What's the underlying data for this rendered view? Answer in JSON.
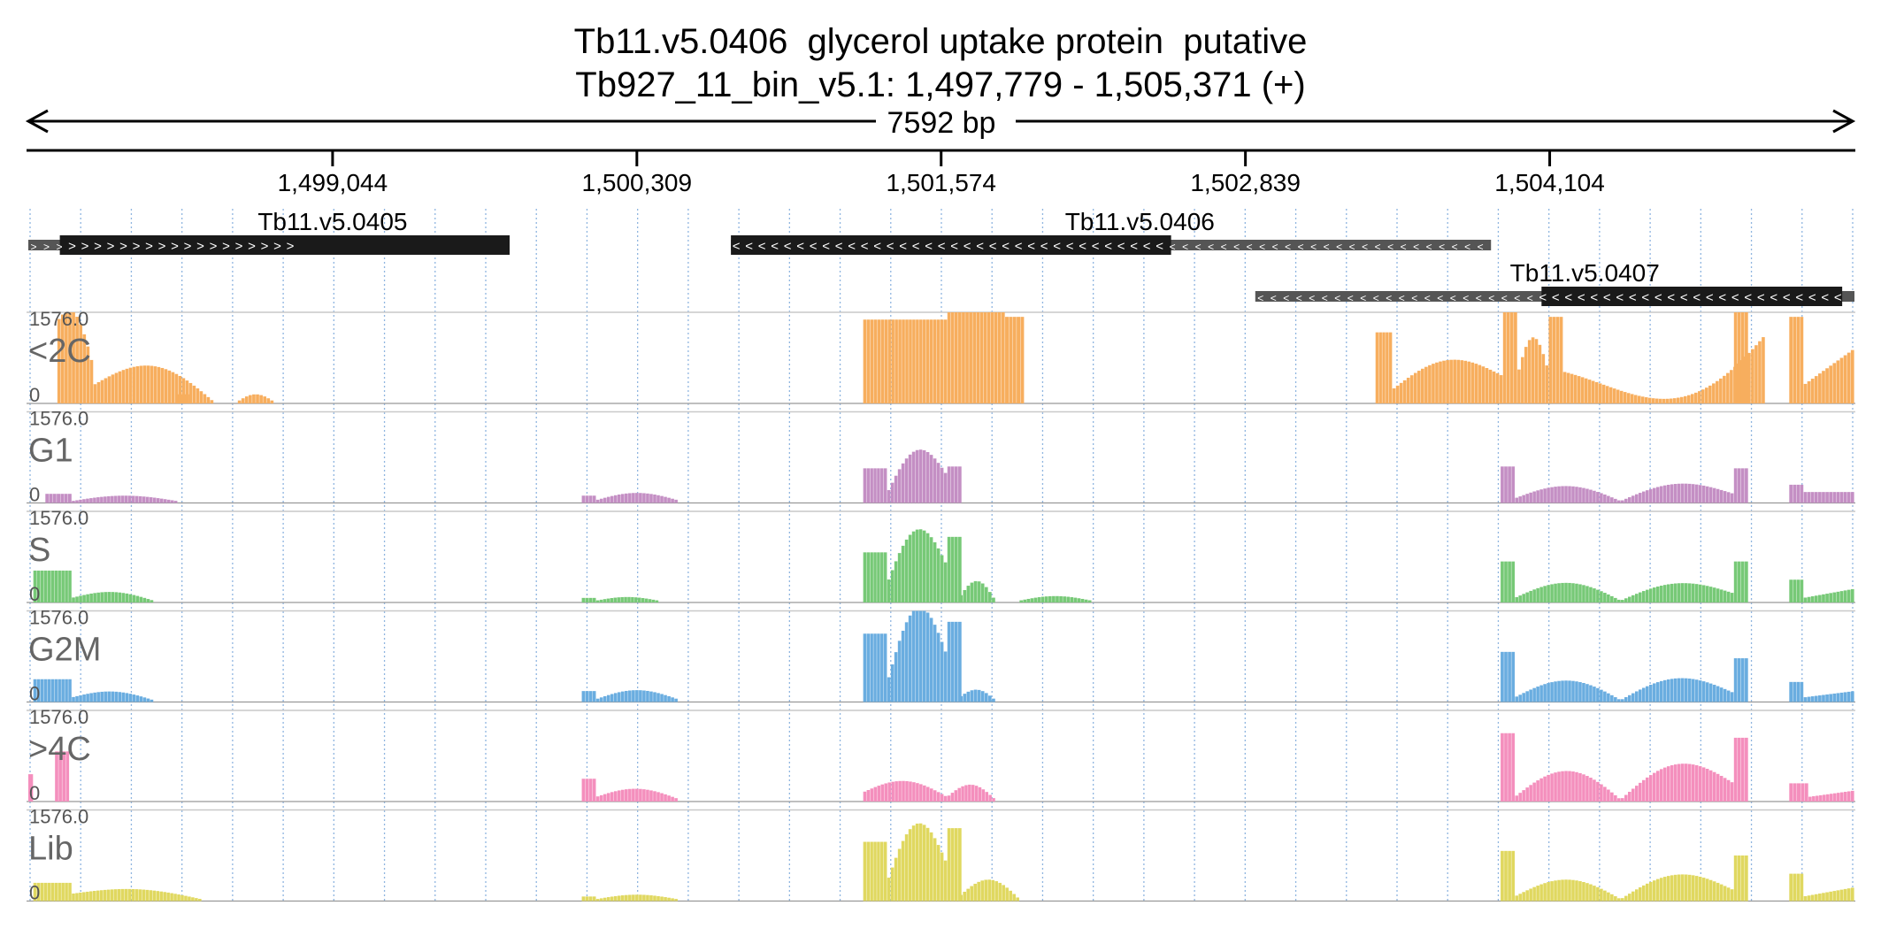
{
  "header": {
    "title": "Tb11.v5.0406  glycerol uptake protein  putative",
    "subtitle": "Tb927_11_bin_v5.1: 1,497,779 - 1,505,371 (+)",
    "span_label": "7592 bp"
  },
  "colors": {
    "<2C": "#f7ae5e",
    "G1": "#c48fc4",
    "S": "#77c977",
    "G2M": "#6aade0",
    "4C": "#f48fbd",
    "Lib": "#e0d860",
    "gene_core": "#1a1a1a",
    "gene_utr": "#555555",
    "grid": "#8fb5e0",
    "label": "#666666"
  },
  "chart_data": {
    "type": "genome_browser",
    "region": {
      "chrom": "Tb927_11_bin_v5.1",
      "start": 1497779,
      "end": 1505371,
      "strand": "+"
    },
    "ticks": [
      {
        "pos": 1499044,
        "label": "1,499,044"
      },
      {
        "pos": 1500309,
        "label": "1,500,309"
      },
      {
        "pos": 1501574,
        "label": "1,501,574"
      },
      {
        "pos": 1502839,
        "label": "1,502,839"
      },
      {
        "pos": 1504104,
        "label": "1,504,104"
      }
    ],
    "genes": [
      {
        "name": "Tb11.v5.0405",
        "strand": "+",
        "row": 0,
        "utr": [
          1497779,
          1498900
        ],
        "core": [
          1497910,
          1499780
        ],
        "label_pos": 1499044
      },
      {
        "name": "Tb11.v5.0406",
        "strand": "-",
        "row": 0,
        "utr": [
          1500700,
          1503860
        ],
        "core": [
          1500700,
          1502530
        ],
        "label_pos": 1502400
      },
      {
        "name": "Tb11.v5.0407",
        "strand": "-",
        "row": 1,
        "utr": [
          1502880,
          1505371
        ],
        "core": [
          1504070,
          1505320
        ],
        "label_pos": 1504250
      }
    ],
    "tracks": [
      {
        "name": "<2C",
        "max_label": "1576.0",
        "min_label": "0",
        "color_key": "<2C",
        "scale": 1.0,
        "blocks": [
          {
            "start": 1497900,
            "end": 1498050,
            "shape": "hump",
            "h0": 0.9,
            "h1": 0.4,
            "peak": 0.33
          },
          {
            "start": 1498050,
            "end": 1498550,
            "shape": "hump",
            "h0": 0.2,
            "h1": 0.02,
            "peak": 0.3
          },
          {
            "start": 1498400,
            "end": 1498460,
            "shape": "flat",
            "h0": 0.1,
            "h1": 0.1,
            "peak": 0
          },
          {
            "start": 1498650,
            "end": 1498800,
            "shape": "hump",
            "h0": 0.02,
            "h1": 0.02,
            "peak": 0.08
          },
          {
            "start": 1501600,
            "end": 1501840,
            "shape": "hump",
            "h0": 0.92,
            "h1": 0.95,
            "peak": 0.8
          },
          {
            "start": 1501840,
            "end": 1501920,
            "shape": "flat",
            "h0": 0.95,
            "h1": 0.95,
            "peak": 0
          },
          {
            "start": 1501250,
            "end": 1501600,
            "shape": "flat",
            "h0": 0.92,
            "h1": 0.92,
            "peak": 0
          },
          {
            "start": 1503380,
            "end": 1503450,
            "shape": "flat",
            "h0": 0.78,
            "h1": 0.78,
            "peak": 0
          },
          {
            "start": 1503450,
            "end": 1503910,
            "shape": "hump",
            "h0": 0.15,
            "h1": 0.3,
            "peak": 0.25
          },
          {
            "start": 1503910,
            "end": 1503970,
            "shape": "flat",
            "h0": 1.0,
            "h1": 1.0,
            "peak": 0
          },
          {
            "start": 1503970,
            "end": 1504100,
            "shape": "hump",
            "h0": 0.3,
            "h1": 0.35,
            "peak": 0.4
          },
          {
            "start": 1504100,
            "end": 1504160,
            "shape": "flat",
            "h0": 0.95,
            "h1": 0.95,
            "peak": 0
          },
          {
            "start": 1504160,
            "end": 1505000,
            "shape": "dip",
            "h0": 0.35,
            "h1": 0.75,
            "peak": 0.05
          },
          {
            "start": 1504870,
            "end": 1504930,
            "shape": "flat",
            "h0": 1.0,
            "h1": 1.0,
            "peak": 0
          },
          {
            "start": 1505100,
            "end": 1505160,
            "shape": "flat",
            "h0": 0.95,
            "h1": 0.95,
            "peak": 0
          },
          {
            "start": 1505160,
            "end": 1505371,
            "shape": "ramp",
            "h0": 0.2,
            "h1": 0.6,
            "peak": 0
          }
        ]
      },
      {
        "name": "G1",
        "max_label": "1576.0",
        "min_label": "0",
        "color_key": "G1",
        "scale": 1.0,
        "blocks": [
          {
            "start": 1497850,
            "end": 1497960,
            "shape": "flat",
            "h0": 0.1,
            "h1": 0.1,
            "peak": 0
          },
          {
            "start": 1497960,
            "end": 1498400,
            "shape": "hump",
            "h0": 0.02,
            "h1": 0.02,
            "peak": 0.06
          },
          {
            "start": 1500080,
            "end": 1500140,
            "shape": "flat",
            "h0": 0.08,
            "h1": 0.08,
            "peak": 0
          },
          {
            "start": 1500140,
            "end": 1500480,
            "shape": "hump",
            "h0": 0.03,
            "h1": 0.03,
            "peak": 0.08
          },
          {
            "start": 1501250,
            "end": 1501350,
            "shape": "flat",
            "h0": 0.38,
            "h1": 0.38,
            "peak": 0
          },
          {
            "start": 1501350,
            "end": 1501600,
            "shape": "hump",
            "h0": 0.1,
            "h1": 0.3,
            "peak": 0.38
          },
          {
            "start": 1501600,
            "end": 1501660,
            "shape": "flat",
            "h0": 0.4,
            "h1": 0.4,
            "peak": 0
          },
          {
            "start": 1503900,
            "end": 1503960,
            "shape": "flat",
            "h0": 0.4,
            "h1": 0.4,
            "peak": 0
          },
          {
            "start": 1503960,
            "end": 1504400,
            "shape": "hump",
            "h0": 0.05,
            "h1": 0.02,
            "peak": 0.15
          },
          {
            "start": 1504400,
            "end": 1504870,
            "shape": "hump",
            "h0": 0.02,
            "h1": 0.1,
            "peak": 0.15
          },
          {
            "start": 1504870,
            "end": 1504930,
            "shape": "flat",
            "h0": 0.38,
            "h1": 0.38,
            "peak": 0
          },
          {
            "start": 1505100,
            "end": 1505160,
            "shape": "flat",
            "h0": 0.2,
            "h1": 0.2,
            "peak": 0
          },
          {
            "start": 1505160,
            "end": 1505371,
            "shape": "flat",
            "h0": 0.12,
            "h1": 0.12,
            "peak": 0
          }
        ]
      },
      {
        "name": "S",
        "max_label": "1576.0",
        "min_label": "0",
        "color_key": "S",
        "scale": 1.0,
        "blocks": [
          {
            "start": 1497800,
            "end": 1497960,
            "shape": "flat",
            "h0": 0.35,
            "h1": 0.35,
            "peak": 0
          },
          {
            "start": 1497960,
            "end": 1498300,
            "shape": "hump",
            "h0": 0.05,
            "h1": 0.02,
            "peak": 0.08
          },
          {
            "start": 1500080,
            "end": 1500140,
            "shape": "flat",
            "h0": 0.05,
            "h1": 0.05,
            "peak": 0
          },
          {
            "start": 1500140,
            "end": 1500400,
            "shape": "hump",
            "h0": 0.02,
            "h1": 0.02,
            "peak": 0.04
          },
          {
            "start": 1501250,
            "end": 1501350,
            "shape": "flat",
            "h0": 0.55,
            "h1": 0.55,
            "peak": 0
          },
          {
            "start": 1501350,
            "end": 1501600,
            "shape": "hump",
            "h0": 0.2,
            "h1": 0.4,
            "peak": 0.5
          },
          {
            "start": 1501600,
            "end": 1501660,
            "shape": "flat",
            "h0": 0.72,
            "h1": 0.72,
            "peak": 0
          },
          {
            "start": 1501650,
            "end": 1501800,
            "shape": "hump",
            "h0": 0.05,
            "h1": 0.02,
            "peak": 0.2
          },
          {
            "start": 1501900,
            "end": 1502200,
            "shape": "hump",
            "h0": 0.02,
            "h1": 0.02,
            "peak": 0.05
          },
          {
            "start": 1503900,
            "end": 1503960,
            "shape": "flat",
            "h0": 0.45,
            "h1": 0.45,
            "peak": 0
          },
          {
            "start": 1503960,
            "end": 1504400,
            "shape": "hump",
            "h0": 0.05,
            "h1": 0.02,
            "peak": 0.18
          },
          {
            "start": 1504400,
            "end": 1504870,
            "shape": "hump",
            "h0": 0.02,
            "h1": 0.1,
            "peak": 0.15
          },
          {
            "start": 1504870,
            "end": 1504930,
            "shape": "flat",
            "h0": 0.45,
            "h1": 0.45,
            "peak": 0
          },
          {
            "start": 1505100,
            "end": 1505160,
            "shape": "flat",
            "h0": 0.25,
            "h1": 0.25,
            "peak": 0
          },
          {
            "start": 1505160,
            "end": 1505371,
            "shape": "ramp",
            "h0": 0.05,
            "h1": 0.15,
            "peak": 0
          }
        ]
      },
      {
        "name": "G2M",
        "max_label": "1576.0",
        "min_label": "0",
        "color_key": "G2M",
        "scale": 1.0,
        "blocks": [
          {
            "start": 1497800,
            "end": 1497960,
            "shape": "flat",
            "h0": 0.25,
            "h1": 0.25,
            "peak": 0
          },
          {
            "start": 1497960,
            "end": 1498300,
            "shape": "hump",
            "h0": 0.05,
            "h1": 0.02,
            "peak": 0.08
          },
          {
            "start": 1500080,
            "end": 1500140,
            "shape": "flat",
            "h0": 0.12,
            "h1": 0.12,
            "peak": 0
          },
          {
            "start": 1500140,
            "end": 1500480,
            "shape": "hump",
            "h0": 0.03,
            "h1": 0.03,
            "peak": 0.1
          },
          {
            "start": 1501250,
            "end": 1501350,
            "shape": "flat",
            "h0": 0.75,
            "h1": 0.75,
            "peak": 0
          },
          {
            "start": 1501350,
            "end": 1501600,
            "shape": "hump",
            "h0": 0.2,
            "h1": 0.5,
            "peak": 0.68
          },
          {
            "start": 1501600,
            "end": 1501660,
            "shape": "flat",
            "h0": 0.88,
            "h1": 0.88,
            "peak": 0
          },
          {
            "start": 1501650,
            "end": 1501800,
            "shape": "hump",
            "h0": 0.05,
            "h1": 0.02,
            "peak": 0.1
          },
          {
            "start": 1503900,
            "end": 1503960,
            "shape": "flat",
            "h0": 0.55,
            "h1": 0.55,
            "peak": 0
          },
          {
            "start": 1503960,
            "end": 1504400,
            "shape": "hump",
            "h0": 0.05,
            "h1": 0.02,
            "peak": 0.2
          },
          {
            "start": 1504400,
            "end": 1504870,
            "shape": "hump",
            "h0": 0.02,
            "h1": 0.1,
            "peak": 0.2
          },
          {
            "start": 1504870,
            "end": 1504930,
            "shape": "flat",
            "h0": 0.48,
            "h1": 0.48,
            "peak": 0
          },
          {
            "start": 1505100,
            "end": 1505160,
            "shape": "flat",
            "h0": 0.22,
            "h1": 0.22,
            "peak": 0
          },
          {
            "start": 1505160,
            "end": 1505371,
            "shape": "ramp",
            "h0": 0.05,
            "h1": 0.12,
            "peak": 0
          }
        ]
      },
      {
        "name": ">4C",
        "max_label": "1576.0",
        "min_label": "0",
        "color_key": "4C",
        "scale": 1.0,
        "blocks": [
          {
            "start": 1497779,
            "end": 1497800,
            "shape": "flat",
            "h0": 0.3,
            "h1": 0.3,
            "peak": 0
          },
          {
            "start": 1497890,
            "end": 1497950,
            "shape": "flat",
            "h0": 0.55,
            "h1": 0.55,
            "peak": 0
          },
          {
            "start": 1500080,
            "end": 1500140,
            "shape": "flat",
            "h0": 0.25,
            "h1": 0.25,
            "peak": 0
          },
          {
            "start": 1500140,
            "end": 1500480,
            "shape": "hump",
            "h0": 0.05,
            "h1": 0.03,
            "peak": 0.1
          },
          {
            "start": 1501250,
            "end": 1501600,
            "shape": "hump",
            "h0": 0.1,
            "h1": 0.05,
            "peak": 0.15
          },
          {
            "start": 1501600,
            "end": 1501800,
            "shape": "hump",
            "h0": 0.05,
            "h1": 0.02,
            "peak": 0.15
          },
          {
            "start": 1503900,
            "end": 1503960,
            "shape": "flat",
            "h0": 0.75,
            "h1": 0.75,
            "peak": 0
          },
          {
            "start": 1503960,
            "end": 1504400,
            "shape": "hump",
            "h0": 0.05,
            "h1": 0.02,
            "peak": 0.3
          },
          {
            "start": 1504400,
            "end": 1504870,
            "shape": "hump",
            "h0": 0.02,
            "h1": 0.2,
            "peak": 0.3
          },
          {
            "start": 1504870,
            "end": 1504930,
            "shape": "flat",
            "h0": 0.7,
            "h1": 0.7,
            "peak": 0
          },
          {
            "start": 1505100,
            "end": 1505180,
            "shape": "flat",
            "h0": 0.2,
            "h1": 0.2,
            "peak": 0
          },
          {
            "start": 1505180,
            "end": 1505371,
            "shape": "ramp",
            "h0": 0.05,
            "h1": 0.12,
            "peak": 0
          }
        ]
      },
      {
        "name": "Lib",
        "max_label": "1576.0",
        "min_label": "0",
        "color_key": "Lib",
        "scale": 1.0,
        "blocks": [
          {
            "start": 1497800,
            "end": 1497960,
            "shape": "flat",
            "h0": 0.2,
            "h1": 0.2,
            "peak": 0
          },
          {
            "start": 1497960,
            "end": 1498500,
            "shape": "hump",
            "h0": 0.08,
            "h1": 0.02,
            "peak": 0.08
          },
          {
            "start": 1500080,
            "end": 1500140,
            "shape": "flat",
            "h0": 0.05,
            "h1": 0.05,
            "peak": 0
          },
          {
            "start": 1500140,
            "end": 1500480,
            "shape": "hump",
            "h0": 0.02,
            "h1": 0.02,
            "peak": 0.05
          },
          {
            "start": 1501250,
            "end": 1501350,
            "shape": "flat",
            "h0": 0.65,
            "h1": 0.65,
            "peak": 0
          },
          {
            "start": 1501350,
            "end": 1501600,
            "shape": "hump",
            "h0": 0.2,
            "h1": 0.4,
            "peak": 0.55
          },
          {
            "start": 1501600,
            "end": 1501660,
            "shape": "flat",
            "h0": 0.8,
            "h1": 0.8,
            "peak": 0
          },
          {
            "start": 1501650,
            "end": 1501900,
            "shape": "hump",
            "h0": 0.05,
            "h1": 0.02,
            "peak": 0.2
          },
          {
            "start": 1503900,
            "end": 1503960,
            "shape": "flat",
            "h0": 0.55,
            "h1": 0.55,
            "peak": 0
          },
          {
            "start": 1503960,
            "end": 1504400,
            "shape": "hump",
            "h0": 0.05,
            "h1": 0.02,
            "peak": 0.2
          },
          {
            "start": 1504400,
            "end": 1504870,
            "shape": "hump",
            "h0": 0.02,
            "h1": 0.12,
            "peak": 0.22
          },
          {
            "start": 1504870,
            "end": 1504930,
            "shape": "flat",
            "h0": 0.5,
            "h1": 0.5,
            "peak": 0
          },
          {
            "start": 1505100,
            "end": 1505160,
            "shape": "flat",
            "h0": 0.3,
            "h1": 0.3,
            "peak": 0
          },
          {
            "start": 1505160,
            "end": 1505371,
            "shape": "ramp",
            "h0": 0.05,
            "h1": 0.15,
            "peak": 0
          }
        ]
      }
    ]
  }
}
